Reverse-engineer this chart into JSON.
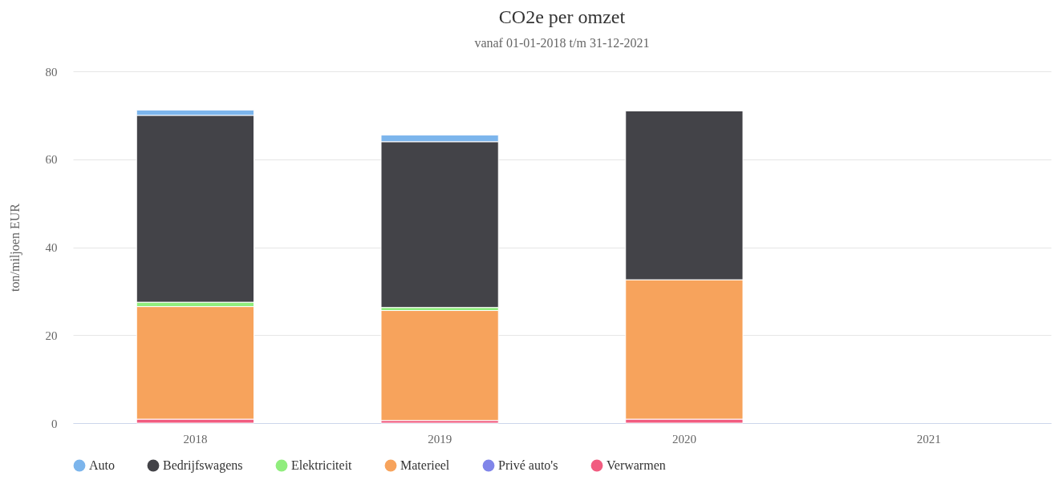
{
  "chart_data": {
    "type": "bar",
    "title": "CO2e per omzet",
    "subtitle": "vanaf 01-01-2018 t/m 31-12-2021",
    "ylabel": "ton/miljoen EUR",
    "categories": [
      "2018",
      "2019",
      "2020",
      "2021"
    ],
    "stacked": true,
    "series": [
      {
        "name": "Verwarmen",
        "color": "#f15c80",
        "values": [
          0.9,
          0.6,
          0.9,
          0
        ]
      },
      {
        "name": "Privé auto's",
        "color": "#8085e9",
        "values": [
          0,
          0,
          0,
          0
        ]
      },
      {
        "name": "Materieel",
        "color": "#f7a35c",
        "values": [
          25.6,
          25.0,
          31.7,
          0
        ]
      },
      {
        "name": "Elektriciteit",
        "color": "#90ed7d",
        "values": [
          1.0,
          0.7,
          0,
          0
        ]
      },
      {
        "name": "Bedrijfswagens",
        "color": "#434348",
        "values": [
          42.5,
          37.7,
          38.4,
          0
        ]
      },
      {
        "name": "Auto",
        "color": "#7cb5ec",
        "values": [
          1.2,
          1.5,
          0,
          0
        ]
      }
    ],
    "ylim": [
      0,
      80
    ],
    "yticks": [
      0,
      20,
      40,
      60,
      80
    ],
    "grid": "y",
    "legend": "bottom",
    "marker": "circle"
  }
}
